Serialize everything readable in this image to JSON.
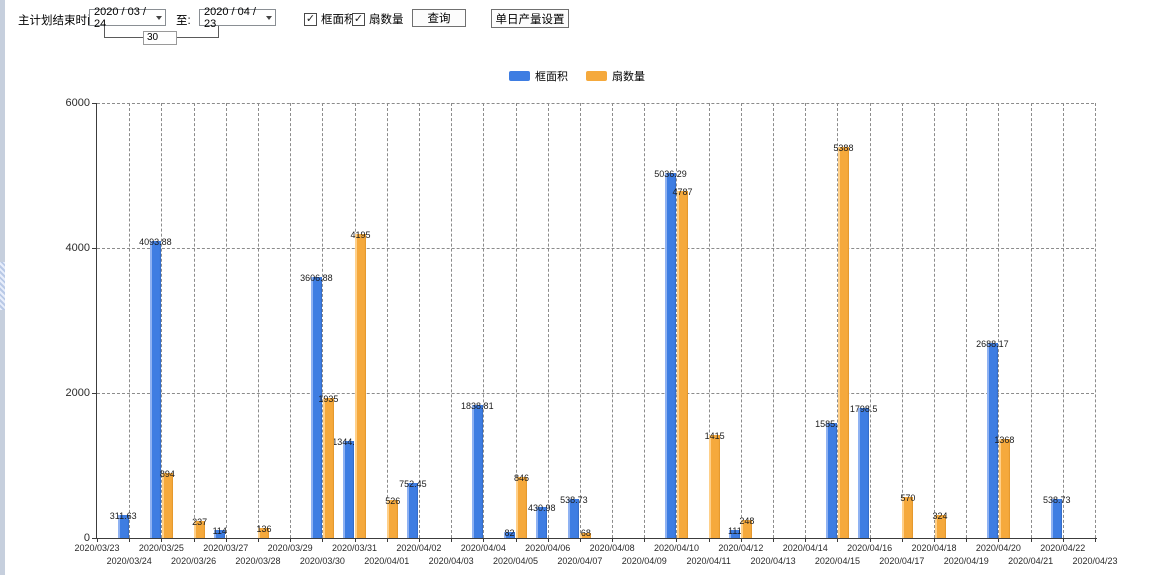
{
  "toolbar": {
    "end_time_label": "主计划结束时间:",
    "date_from": "2020 / 03 / 24",
    "to_label": "至:",
    "date_to": "2020 / 04 / 23",
    "interval_days": "30",
    "checkbox_area_label": "框面积",
    "checkbox_fans_label": "扇数量",
    "checkbox_glyph": "✓",
    "query_button_label": "查询",
    "daily_output_button_label": "单日产量设置"
  },
  "legend": {
    "area_label": "框面积",
    "fans_label": "扇数量"
  },
  "colors": {
    "blue": "#3e7de2",
    "orange": "#f5a93c"
  },
  "chart_data": {
    "type": "bar",
    "title": "",
    "xlabel": "",
    "ylabel": "",
    "ylim": [
      0,
      6000
    ],
    "y_ticks": [
      0,
      2000,
      4000,
      6000
    ],
    "grid": true,
    "legend_position": "top",
    "categories": [
      "2020/03/23",
      "2020/03/24",
      "2020/03/25",
      "2020/03/26",
      "2020/03/27",
      "2020/03/28",
      "2020/03/29",
      "2020/03/30",
      "2020/03/31",
      "2020/04/01",
      "2020/04/02",
      "2020/04/03",
      "2020/04/04",
      "2020/04/05",
      "2020/04/06",
      "2020/04/07",
      "2020/04/08",
      "2020/04/09",
      "2020/04/10",
      "2020/04/11",
      "2020/04/12",
      "2020/04/13",
      "2020/04/14",
      "2020/04/15",
      "2020/04/16",
      "2020/04/17",
      "2020/04/18",
      "2020/04/19",
      "2020/04/20",
      "2020/04/21",
      "2020/04/22",
      "2020/04/23"
    ],
    "series": [
      {
        "name": "框面积",
        "color": "#3e7de2",
        "values": [
          null,
          311.63,
          4093.88,
          null,
          114,
          null,
          null,
          3606.88,
          1344.95,
          null,
          752.45,
          null,
          1838.81,
          82,
          430.98,
          538.73,
          null,
          null,
          5036.29,
          null,
          111,
          null,
          null,
          1585.96,
          1798.5,
          null,
          null,
          null,
          2688.17,
          null,
          538.73,
          null
        ]
      },
      {
        "name": "扇数量",
        "color": "#f5a93c",
        "values": [
          null,
          null,
          894,
          237,
          null,
          136,
          null,
          1935,
          4195,
          526,
          null,
          null,
          null,
          846,
          null,
          68,
          null,
          null,
          4787,
          1415,
          248,
          null,
          null,
          5388,
          null,
          570,
          324,
          null,
          1368,
          null,
          null,
          null
        ]
      }
    ]
  }
}
